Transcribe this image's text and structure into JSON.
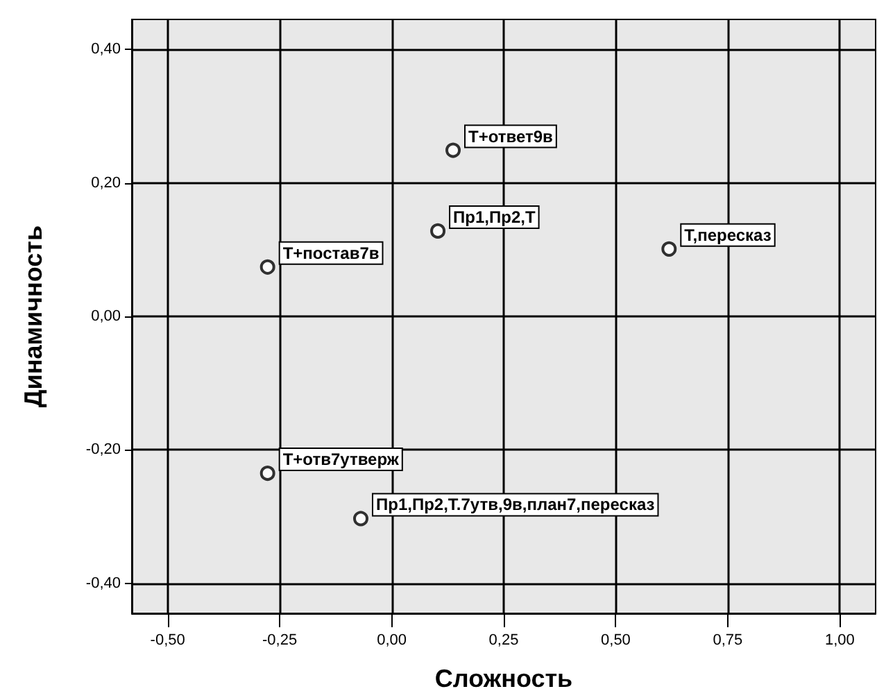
{
  "chart_data": {
    "type": "scatter",
    "xlabel": "Сложность",
    "ylabel": "Динамичность",
    "x": [
      0.137,
      0.103,
      0.619,
      -0.277,
      -0.277,
      -0.069
    ],
    "values": [
      0.249,
      0.128,
      0.101,
      0.074,
      -0.235,
      -0.303
    ],
    "color": "#000000",
    "marker": "circle",
    "grid": true,
    "xlim": [
      -0.58,
      1.08
    ],
    "ylim": [
      -0.445,
      0.445
    ],
    "xticks": [
      {
        "value": -0.5,
        "label": "-0,50"
      },
      {
        "value": -0.25,
        "label": "-0,25"
      },
      {
        "value": 0,
        "label": "0,00"
      },
      {
        "value": 0.25,
        "label": "0,25"
      },
      {
        "value": 0.5,
        "label": "0,50"
      },
      {
        "value": 0.75,
        "label": "0,75"
      },
      {
        "value": 1,
        "label": "1,00"
      }
    ],
    "yticks": [
      {
        "value": -0.4,
        "label": "-0,40"
      },
      {
        "value": -0.2,
        "label": "-0,20"
      },
      {
        "value": 0,
        "label": "0,00"
      },
      {
        "value": 0.2,
        "label": "0,20"
      },
      {
        "value": 0.4,
        "label": "0,40"
      }
    ],
    "annotations": [
      {
        "text": "Т+ответ9в",
        "x": 0.137,
        "y": 0.249
      },
      {
        "text": "Пр1,Пр2,Т",
        "x": 0.103,
        "y": 0.128
      },
      {
        "text": "Т,пересказ",
        "x": 0.619,
        "y": 0.101
      },
      {
        "text": "Т+постав7в",
        "x": -0.277,
        "y": 0.074
      },
      {
        "text": "Т+отв7утверж",
        "x": -0.277,
        "y": -0.235
      },
      {
        "text": "Пр1,Пр2,Т.7утв,9в,план7,пересказ",
        "x": -0.069,
        "y": -0.303
      }
    ]
  }
}
